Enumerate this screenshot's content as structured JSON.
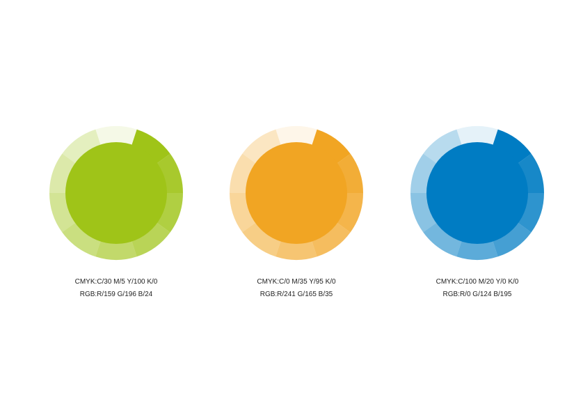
{
  "swatches": [
    {
      "name": "green",
      "color": "#9fc418",
      "cmyk": "CMYK:C/30  M/5  Y/100  K/0",
      "rgb": "RGB:R/159  G/196  B/24"
    },
    {
      "name": "orange",
      "color": "#f1a523",
      "cmyk": "CMYK:C/0  M/35  Y/95  K/0",
      "rgb": "RGB:R/241  G/165  B/35"
    },
    {
      "name": "blue",
      "color": "#007cc3",
      "cmyk": "CMYK:C/100  M/20  Y/0  K/0",
      "rgb": "RGB:R/0  G/124  B/195"
    }
  ]
}
